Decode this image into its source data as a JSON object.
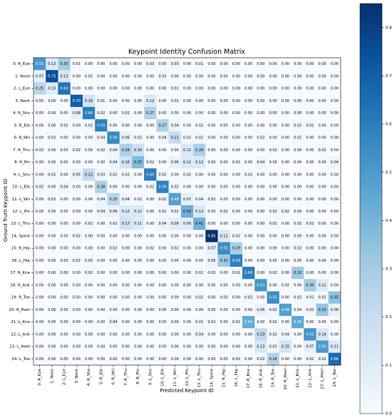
{
  "chart_data": {
    "type": "heatmap",
    "title": "Keypoint Identity Confusion Matrix",
    "xlabel": "Predicted Keypoint ID",
    "ylabel": "Ground Truth Keypoint ID",
    "colormap": "Blues",
    "categories": [
      "0: R_Eye",
      "1: Nose",
      "2: L_Eye",
      "3: Neck",
      "4: R_Sho",
      "5: R_Elb",
      "6: R_Wri",
      "7: R_Thu",
      "8: R_Pin",
      "9: L_Sho",
      "10: L_Elb",
      "11: L_Wri",
      "12: L_Pin",
      "13: L_Thu",
      "14: Spine",
      "15: R_Hip",
      "16: L_Hip",
      "17: R_Kne",
      "18: R_Ank",
      "19: R_Toe",
      "20: R_Heel",
      "21: L_Kne",
      "22: L_Ank",
      "23: L_Heel",
      "24: L_Toe"
    ],
    "values": [
      [
        0.51,
        0.12,
        0.3,
        0.01,
        0,
        0,
        0,
        0,
        0,
        0.03,
        0,
        0.03,
        0,
        0.01,
        0,
        0,
        0,
        0,
        0,
        0,
        0,
        0,
        0,
        0,
        0
      ],
      [
        0.07,
        0.75,
        0.13,
        0,
        0.01,
        0,
        0,
        0,
        0,
        0,
        0.03,
        0,
        0,
        0,
        0,
        0,
        0,
        0,
        0,
        0,
        0,
        0,
        0,
        0,
        0
      ],
      [
        0.25,
        0.1,
        0.63,
        0,
        0,
        0,
        0,
        0,
        0,
        0,
        0,
        0.01,
        0,
        0,
        0,
        0,
        0,
        0,
        0,
        0,
        0,
        0,
        0,
        0,
        0
      ],
      [
        0,
        0,
        0,
        0.7,
        0.16,
        0.01,
        0,
        0,
        0,
        0.12,
        0,
        0.01,
        0,
        0,
        0,
        0,
        0,
        0,
        0,
        0,
        0,
        0,
        0,
        0,
        0
      ],
      [
        0,
        0,
        0,
        0.08,
        0.6,
        0.02,
        0,
        0.02,
        0,
        0.27,
        0,
        0,
        0,
        0,
        0,
        0,
        0,
        0,
        0,
        0,
        0,
        0,
        0,
        0,
        0
      ],
      [
        0,
        0,
        0.02,
        0,
        0.02,
        0.59,
        0,
        0,
        0,
        0,
        0.27,
        0.04,
        0,
        0.02,
        0,
        0,
        0,
        0,
        0,
        0,
        0,
        0.02,
        0.02,
        0,
        0
      ],
      [
        0,
        0.02,
        0,
        0,
        0,
        0.04,
        0.56,
        0.06,
        0.02,
        0,
        0.04,
        0.21,
        0.02,
        0.02,
        0,
        0,
        0,
        0,
        0.02,
        0,
        0,
        0.02,
        0,
        0,
        0
      ],
      [
        0.02,
        0,
        0,
        0.02,
        0,
        0.02,
        0.04,
        0.28,
        0.18,
        0,
        0,
        0,
        0.12,
        0.28,
        0,
        0,
        0,
        0,
        0,
        0.02,
        0,
        0,
        0,
        0.02,
        0
      ],
      [
        0,
        0,
        0,
        0,
        0,
        0,
        0.04,
        0.16,
        0.37,
        0.02,
        0,
        0.06,
        0.12,
        0.12,
        0,
        0,
        0.02,
        0,
        0.04,
        0,
        0,
        0,
        0,
        0,
        0.04
      ],
      [
        0,
        0.02,
        0,
        0.05,
        0.22,
        0.03,
        0.02,
        0.02,
        0,
        0.6,
        0.02,
        0,
        0.02,
        0,
        0,
        0,
        0,
        0.02,
        0,
        0,
        0,
        0,
        0,
        0,
        0
      ],
      [
        0.02,
        0,
        0.04,
        0,
        0,
        0.28,
        0,
        0,
        0,
        0.02,
        0.59,
        0.02,
        0,
        0,
        0,
        0,
        0,
        0,
        0,
        0,
        0,
        0,
        0,
        0,
        0
      ],
      [
        0,
        0.02,
        0,
        0,
        0,
        0.04,
        0.25,
        0.04,
        0.02,
        0,
        0.02,
        0.48,
        0.07,
        0.04,
        0.02,
        0,
        0,
        0,
        0,
        0,
        0,
        0,
        0,
        0,
        0
      ],
      [
        0,
        0,
        0,
        0,
        0,
        0.04,
        0.06,
        0.12,
        0.12,
        0,
        0.02,
        0.02,
        0.42,
        0.12,
        0,
        0.02,
        0,
        0,
        0,
        0.02,
        0.02,
        0,
        0,
        0,
        0
      ],
      [
        0,
        0,
        0,
        0,
        0.02,
        0,
        0.02,
        0.17,
        0.11,
        0,
        0.04,
        0.09,
        0.09,
        0.41,
        0,
        0,
        0,
        0,
        0,
        0.02,
        0,
        0.02,
        0.02,
        0,
        0
      ],
      [
        0,
        0,
        0,
        0.02,
        0,
        0,
        0,
        0,
        0,
        0,
        0,
        0,
        0,
        0,
        0.85,
        0.12,
        0.02,
        0,
        0,
        0,
        0,
        0,
        0,
        0,
        0
      ],
      [
        0,
        0,
        0,
        0,
        0,
        0,
        0.02,
        0,
        0,
        0.02,
        0,
        0.02,
        0,
        0,
        0.07,
        0.55,
        0.29,
        0,
        0,
        0,
        0,
        0.02,
        0,
        0,
        0
      ],
      [
        0,
        0,
        0,
        0.02,
        0.02,
        0,
        0,
        0,
        0,
        0,
        0,
        0,
        0,
        0,
        0.05,
        0.32,
        0.59,
        0,
        0,
        0,
        0,
        0,
        0,
        0,
        0
      ],
      [
        0,
        0,
        0,
        0,
        0.02,
        0,
        0,
        0,
        0,
        0,
        0,
        0,
        0,
        0.02,
        0.02,
        0,
        0.02,
        0.6,
        0,
        0.02,
        0,
        0.32,
        0,
        0,
        0
      ],
      [
        0,
        0,
        0,
        0,
        0,
        0,
        0,
        0,
        0,
        0,
        0,
        0,
        0,
        0,
        0,
        0,
        0,
        0,
        0.52,
        0,
        0.02,
        0,
        0.3,
        0.11,
        0
      ],
      [
        0,
        0,
        0,
        0,
        0,
        0,
        0,
        0,
        0,
        0,
        0,
        0,
        0,
        0.02,
        0,
        0,
        0,
        0.02,
        0,
        0.55,
        0,
        0.02,
        0.02,
        0.02,
        0.35
      ],
      [
        0,
        0,
        0,
        0,
        0,
        0,
        0,
        0,
        0,
        0,
        0,
        0,
        0,
        0,
        0,
        0,
        0,
        0,
        0.06,
        0.02,
        0.48,
        0,
        0.02,
        0.33,
        0.06
      ],
      [
        0,
        0,
        0,
        0,
        0,
        0,
        0.04,
        0,
        0,
        0,
        0,
        0,
        0,
        0.02,
        0.02,
        0,
        0.02,
        0.44,
        0,
        0.02,
        0,
        0.45,
        0,
        0,
        0
      ],
      [
        0,
        0,
        0,
        0,
        0,
        0,
        0,
        0,
        0,
        0,
        0,
        0,
        0,
        0.04,
        0,
        0,
        0,
        0,
        0.23,
        0.02,
        0.04,
        0,
        0.52,
        0.14,
        0
      ],
      [
        0,
        0,
        0,
        0,
        0,
        0,
        0,
        0,
        0,
        0,
        0,
        0,
        0,
        0,
        0,
        0,
        0,
        0,
        0.13,
        0.02,
        0.15,
        0,
        0.07,
        0.5,
        0.11
      ],
      [
        0,
        0,
        0,
        0,
        0,
        0,
        0,
        0,
        0,
        0,
        0,
        0,
        0,
        0,
        0,
        0,
        0.02,
        0,
        0.02,
        0.26,
        0,
        0,
        0.02,
        0.02,
        0.66
      ]
    ],
    "value_labels": [
      [
        "0.51",
        "0.12",
        "0.30",
        "0.01",
        "0.00",
        "0.00",
        "0.00",
        "0.00",
        "0.00",
        "0.03",
        "0.00",
        "0.03",
        "0.00",
        "0.01",
        "0.00",
        "0.00",
        "0.00",
        "0.00",
        "0.00",
        "0.00",
        "0.00",
        "0.00",
        "0.00",
        "0.00",
        "0.00"
      ],
      [
        "0.07",
        "0.75",
        "0.13",
        "0.00",
        "0.01",
        "0.00",
        "0.00",
        "0.00",
        "0.00",
        "0.00",
        "0.03",
        "0.00",
        "0.00",
        "0.00",
        "0.00",
        "0.00",
        "0.00",
        "0.00",
        "0.00",
        "0.00",
        "0.00",
        "0.00",
        "0.00",
        "0.00",
        "0.00"
      ],
      [
        "0.25",
        "0.10",
        "0.63",
        "0.00",
        "0.00",
        "0.00",
        "0.00",
        "0.00",
        "0.00",
        "0.00",
        "0.00",
        "0.01",
        "0.00",
        "0.00",
        "0.00",
        "0.00",
        "0.00",
        "0.00",
        "0.00",
        "0.00",
        "0.00",
        "0.00",
        "0.00",
        "0.00",
        "0.00"
      ],
      [
        "0.00",
        "0.00",
        "0.00",
        "0.70",
        "0.16",
        "0.01",
        "0.00",
        "0.00",
        "0.00",
        "0.12",
        "0.00",
        "0.01",
        "0.00",
        "0.00",
        "0.00",
        "0.00",
        "0.00",
        "0.00",
        "0.00",
        "0.00",
        "0.00",
        "0.00",
        "0.00",
        "0.00",
        "0.00"
      ],
      [
        "0.00",
        "0.00",
        "0.00",
        "0.08",
        "0.60",
        "0.02",
        "0.00",
        "0.02",
        "0.00",
        "0.27",
        "0.00",
        "0.00",
        "0.00",
        "0.00",
        "0.00",
        "0.00",
        "0.00",
        "0.00",
        "0.00",
        "0.00",
        "0.00",
        "0.00",
        "0.00",
        "0.00",
        "0.00"
      ],
      [
        "0.00",
        "0.00",
        "0.02",
        "0.00",
        "0.02",
        "0.59",
        "0.00",
        "0.00",
        "0.00",
        "0.00",
        "0.27",
        "0.04",
        "0.00",
        "0.02",
        "0.00",
        "0.00",
        "0.00",
        "0.00",
        "0.00",
        "0.00",
        "0.00",
        "0.02",
        "0.02",
        "0.00",
        "0.00"
      ],
      [
        "0.00",
        "0.02",
        "0.00",
        "0.00",
        "0.00",
        "0.04",
        "0.56",
        "0.06",
        "0.02",
        "0.00",
        "0.04",
        "0.21",
        "0.02",
        "0.02",
        "0.00",
        "0.00",
        "0.00",
        "0.00",
        "0.02",
        "0.00",
        "0.00",
        "0.02",
        "0.00",
        "0.00",
        "0.00"
      ],
      [
        "0.02",
        "0.00",
        "0.00",
        "0.02",
        "0.00",
        "0.02",
        "0.04",
        "0.28",
        "0.18",
        "0.00",
        "0.00",
        "0.00",
        "0.12",
        "0.28",
        "0.00",
        "0.00",
        "0.00",
        "0.00",
        "0.00",
        "0.02",
        "0.00",
        "0.00",
        "0.00",
        "0.02",
        "0.00"
      ],
      [
        "0.00",
        "0.00",
        "0.00",
        "0.00",
        "0.00",
        "0.00",
        "0.04",
        "0.16",
        "0.37",
        "0.02",
        "0.00",
        "0.06",
        "0.12",
        "0.12",
        "0.00",
        "0.00",
        "0.02",
        "0.00",
        "0.04",
        "0.00",
        "0.00",
        "0.00",
        "0.00",
        "0.00",
        "0.04"
      ],
      [
        "0.00",
        "0.02",
        "0.00",
        "0.05",
        "0.22",
        "0.03",
        "0.02",
        "0.02",
        "0.00",
        "0.60",
        "0.02",
        "0.00",
        "0.02",
        "0.00",
        "0.00",
        "0.00",
        "0.00",
        "0.02",
        "0.00",
        "0.00",
        "0.00",
        "0.00",
        "0.00",
        "0.00",
        "0.00"
      ],
      [
        "0.02",
        "0.00",
        "0.04",
        "0.00",
        "0.00",
        "0.28",
        "0.00",
        "0.00",
        "0.00",
        "0.02",
        "0.59",
        "0.02",
        "0.00",
        "0.00",
        "0.00",
        "0.00",
        "0.00",
        "0.00",
        "0.00",
        "0.00",
        "0.00",
        "0.00",
        "0.00",
        "0.00",
        "0.00"
      ],
      [
        "0.00",
        "0.02",
        "0.00",
        "0.00",
        "0.00",
        "0.04",
        "0.25",
        "0.04",
        "0.02",
        "0.00",
        "0.02",
        "0.48",
        "0.07",
        "0.04",
        "0.02",
        "0.00",
        "0.00",
        "0.00",
        "0.00",
        "0.00",
        "0.00",
        "0.00",
        "0.00",
        "0.00",
        "0.00"
      ],
      [
        "0.00",
        "0.00",
        "0.00",
        "0.00",
        "0.00",
        "0.04",
        "0.06",
        "0.12",
        "0.12",
        "0.00",
        "0.02",
        "0.02",
        "0.42",
        "0.12",
        "0.00",
        "0.02",
        "0.00",
        "0.00",
        "0.00",
        "0.02",
        "0.02",
        "0.00",
        "0.00",
        "0.00",
        "0.00"
      ],
      [
        "0.00",
        "0.00",
        "0.00",
        "0.00",
        "0.02",
        "0.00",
        "0.02",
        "0.17",
        "0.11",
        "0.00",
        "0.04",
        "0.09",
        "0.09",
        "0.41",
        "0.00",
        "0.00",
        "0.00",
        "0.00",
        "0.00",
        "0.02",
        "0.00",
        "0.02",
        "0.02",
        "0.00",
        "0.00"
      ],
      [
        "0.00",
        "0.00",
        "0.00",
        "0.02",
        "0.00",
        "0.00",
        "0.00",
        "0.00",
        "0.00",
        "0.00",
        "0.00",
        "0.00",
        "0.00",
        "0.00",
        "0.85",
        "0.12",
        "0.02",
        "0.00",
        "0.00",
        "0.00",
        "0.00",
        "0.00",
        "0.00",
        "0.00",
        "0.00"
      ],
      [
        "0.00",
        "0.00",
        "0.00",
        "0.00",
        "0.00",
        "0.00",
        "0.02",
        "0.00",
        "0.00",
        "0.02",
        "0.00",
        "0.02",
        "0.00",
        "0.00",
        "0.07",
        "0.55",
        "0.29",
        "0.00",
        "0.00",
        "0.00",
        "0.00",
        "0.02",
        "0.00",
        "0.00",
        "0.00"
      ],
      [
        "0.00",
        "0.00",
        "0.00",
        "0.02",
        "0.02",
        "0.00",
        "0.00",
        "0.00",
        "0.00",
        "0.00",
        "0.00",
        "0.00",
        "0.00",
        "0.00",
        "0.05",
        "0.32",
        "0.59",
        "0.00",
        "0.00",
        "0.00",
        "0.00",
        "0.00",
        "0.00",
        "0.00",
        "0.00"
      ],
      [
        "0.00",
        "0.00",
        "0.00",
        "0.00",
        "0.02",
        "0.00",
        "0.00",
        "0.00",
        "0.00",
        "0.00",
        "0.00",
        "0.00",
        "0.00",
        "0.02",
        "0.02",
        "0.00",
        "0.02",
        "0.60",
        "0.00",
        "0.02",
        "0.00",
        "0.32",
        "0.00",
        "0.00",
        "0.00"
      ],
      [
        "0.00",
        "0.00",
        "0.00",
        "0.00",
        "0.00",
        "0.00",
        "0.00",
        "0.00",
        "0.00",
        "0.00",
        "0.00",
        "0.00",
        "0.00",
        "0.00",
        "0.00",
        "0.00",
        "0.00",
        "0.00",
        "0.52",
        "0.00",
        "0.02",
        "0.00",
        "0.30",
        "0.11",
        "0.00"
      ],
      [
        "0.00",
        "0.00",
        "0.00",
        "0.00",
        "0.00",
        "0.00",
        "0.00",
        "0.00",
        "0.00",
        "0.00",
        "0.00",
        "0.00",
        "0.00",
        "0.02",
        "0.00",
        "0.00",
        "0.00",
        "0.02",
        "0.00",
        "0.55",
        "0.00",
        "0.02",
        "0.02",
        "0.02",
        "0.35"
      ],
      [
        "0.00",
        "0.00",
        "0.00",
        "0.00",
        "0.00",
        "0.00",
        "0.00",
        "0.00",
        "0.00",
        "0.00",
        "0.00",
        "0.00",
        "0.00",
        "0.00",
        "0.00",
        "0.00",
        "0.00",
        "0.00",
        "0.06",
        "0.02",
        "0.48",
        "0.00",
        "0.02",
        "0.33",
        "0.06"
      ],
      [
        "0.00",
        "0.00",
        "0.00",
        "0.00",
        "0.00",
        "0.00",
        "0.04",
        "0.00",
        "0.00",
        "0.00",
        "0.00",
        "0.00",
        "0.00",
        "0.02",
        "0.02",
        "0.00",
        "0.02",
        "0.44",
        "0.00",
        "0.02",
        "0.00",
        "0.45",
        "0.00",
        "0.00",
        "0.00"
      ],
      [
        "0.00",
        "0.00",
        "0.00",
        "0.00",
        "0.00",
        "0.00",
        "0.00",
        "0.00",
        "0.00",
        "0.00",
        "0.00",
        "0.00",
        "0.00",
        "0.04",
        "0.00",
        "0.00",
        "0.00",
        "0.00",
        "0.23",
        "0.02",
        "0.04",
        "0.00",
        "0.52",
        "0.14",
        "0.00"
      ],
      [
        "0.00",
        "0.00",
        "0.00",
        "0.00",
        "0.00",
        "0.00",
        "0.00",
        "0.00",
        "0.00",
        "0.00",
        "0.00",
        "0.00",
        "0.00",
        "0.00",
        "0.00",
        "0.00",
        "0.00",
        "0.00",
        "0.13",
        "0.02",
        "0.15",
        "0.00",
        "0.07",
        "0.50",
        "0.11"
      ],
      [
        "0.00",
        "0.00",
        "0.00",
        "0.00",
        "0.00",
        "0.00",
        "0.00",
        "0.00",
        "0.00",
        "0.00",
        "0.00",
        "0.00",
        "0.00",
        "0.00",
        "0.00",
        "0.00",
        "0.02",
        "0.00",
        "0.02",
        "0.26",
        "0.00",
        "0.00",
        "0.02",
        "0.02",
        "0.66"
      ]
    ],
    "colorbar": {
      "lim": [
        0,
        0.85
      ],
      "ticks": [
        {
          "value": 0,
          "label": "0.0"
        },
        0.1,
        0.2,
        0.3,
        0.4,
        0.5,
        0.6,
        0.7,
        0.8
      ]
    }
  }
}
